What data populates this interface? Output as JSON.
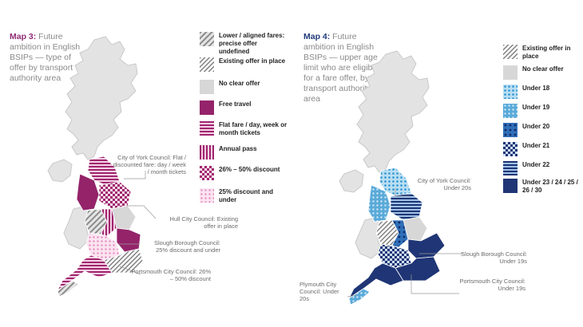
{
  "map3": {
    "title_bold": "Map 3:",
    "title_rest": " Future ambition in English BSIPs — type of offer by transport authority area",
    "legend": [
      {
        "label": "Lower / aligned fares: precise offer undefined",
        "pattern": "p-lower"
      },
      {
        "label": "Existing offer in place",
        "pattern": "p-existing"
      },
      {
        "label": "No clear offer",
        "pattern": "p-none"
      },
      {
        "label": "Free travel",
        "pattern": "p-free"
      },
      {
        "label": "Flat fare / day, week or month tickets",
        "pattern": "p-flat"
      },
      {
        "label": "Annual pass",
        "pattern": "p-annual"
      },
      {
        "label": "26% – 50% discount",
        "pattern": "p-26"
      },
      {
        "label": "25% discount and under",
        "pattern": "p-25"
      }
    ],
    "annotations": {
      "york": "City of York Council: Flat / discounted fare: day / week / month tickets",
      "hull": "Hull City Council: Existing offer in place",
      "slough": "Slough Borough Council: 25% discount and under",
      "portsmouth": "Portsmouth City Council: 26% – 50% discount"
    }
  },
  "map4": {
    "title_bold": "Map 4:",
    "title_rest": " Future ambition in English BSIPs — upper age limit who are eligible for a fare offer, by transport authority area",
    "legend": [
      {
        "label": "Existing offer in place",
        "pattern": "p-existing"
      },
      {
        "label": "No clear offer",
        "pattern": "p-none"
      },
      {
        "label": "Under 18",
        "pattern": "p-u18"
      },
      {
        "label": "Under 19",
        "pattern": "p-u19"
      },
      {
        "label": "Under 20",
        "pattern": "p-u20"
      },
      {
        "label": "Under 21",
        "pattern": "p-u21"
      },
      {
        "label": "Under 22",
        "pattern": "p-u22"
      },
      {
        "label": "Under 23 / 24 / 25 / 26 / 30",
        "pattern": "p-u23"
      }
    ],
    "annotations": {
      "york": "City of York Council: Under 20s",
      "slough": "Slough Borough Council: Under 19s",
      "portsmouth": "Portsmouth City Council: Under 19s",
      "plymouth": "Plymouth City Council: Under 20s"
    }
  },
  "colors": {
    "magenta": "#a0266e",
    "pink_light": "#e8a6cf",
    "grey": "#d7d7d7",
    "navy": "#1f3575",
    "blue_light": "#5aaad9",
    "blue_mid": "#2f6fb8"
  }
}
